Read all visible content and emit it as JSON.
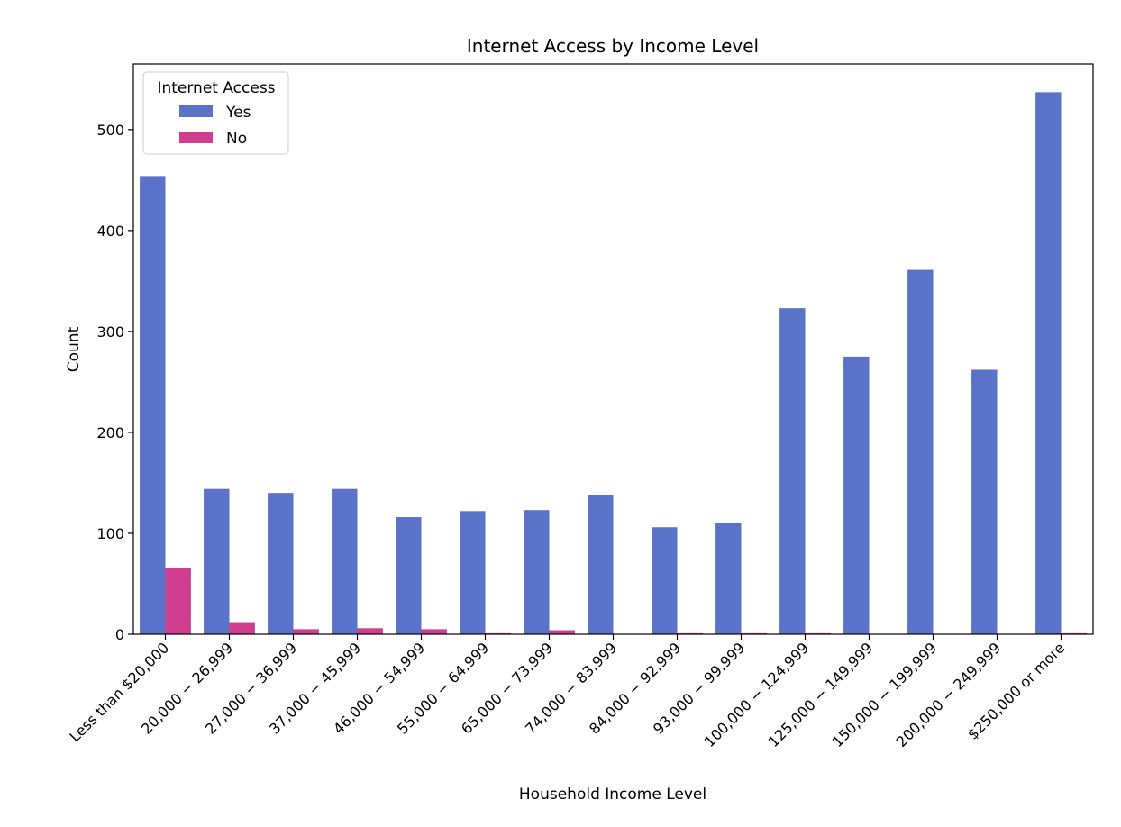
{
  "chart_data": {
    "type": "bar",
    "title": "Internet Access by Income Level",
    "xlabel": "Household Income Level",
    "ylabel": "Count",
    "ylim": [
      0,
      565
    ],
    "yticks": [
      0,
      100,
      200,
      300,
      400,
      500
    ],
    "grid": false,
    "legend": {
      "title": "Internet Access",
      "placement": "top-left"
    },
    "categories": [
      "Less than $20,000",
      "20,000 − 26,999",
      "27,000 − 36,999",
      "37,000 − 45,999",
      "46,000 − 54,999",
      "55,000 − 64,999",
      "65,000 − 73,999",
      "74,000 − 83,999",
      "84,000 − 92,999",
      "93,000 − 99,999",
      "100,000 − 124,999",
      "125,000 − 149,999",
      "150,000 − 199,999",
      "200,000 − 249,999",
      "$250,000 or more"
    ],
    "series": [
      {
        "name": "Yes",
        "color": "#5a72c8",
        "values": [
          454,
          144,
          140,
          144,
          116,
          122,
          123,
          138,
          106,
          110,
          323,
          275,
          361,
          262,
          537
        ]
      },
      {
        "name": "No",
        "color": "#d03f8f",
        "values": [
          66,
          12,
          5,
          6,
          5,
          1,
          4,
          0,
          1,
          1,
          1,
          0,
          0,
          0,
          1
        ]
      }
    ]
  }
}
